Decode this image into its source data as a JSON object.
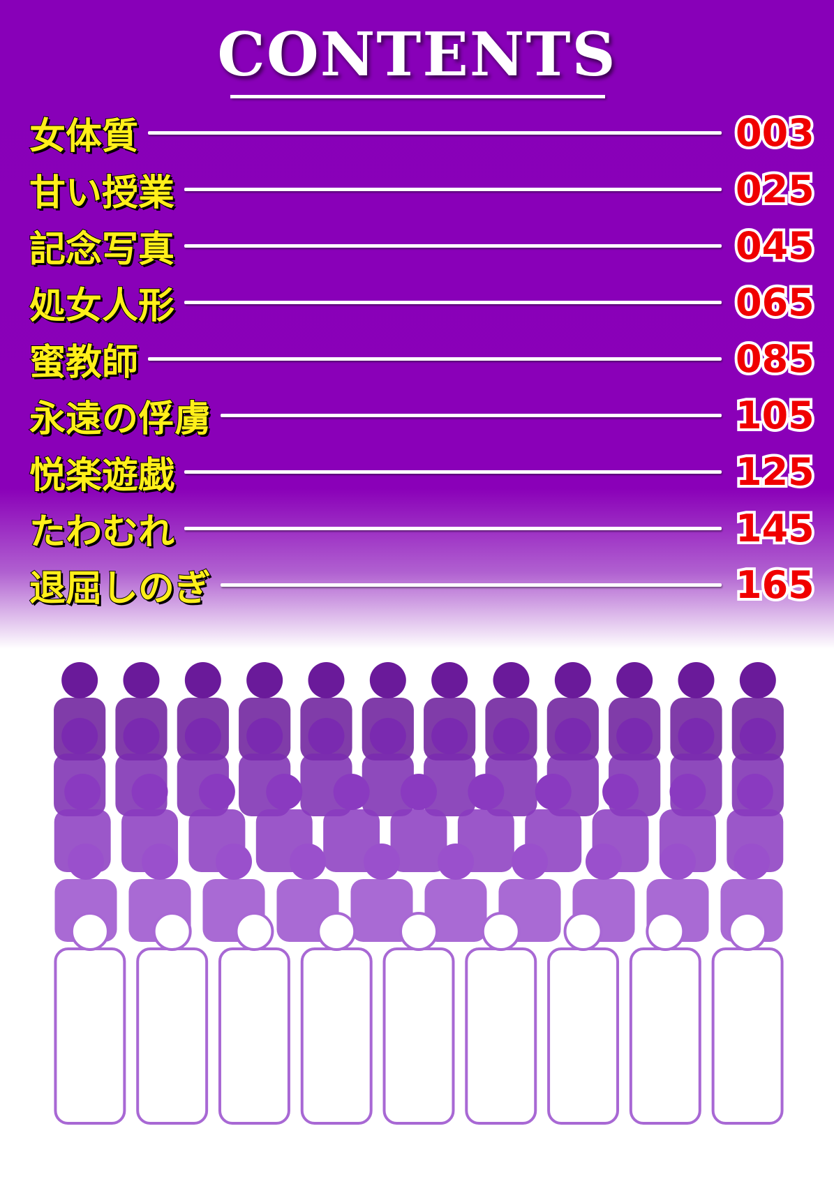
{
  "header": {
    "title": "CONTENTS"
  },
  "toc": [
    {
      "title": "女体質",
      "page": "003"
    },
    {
      "title": "甘い授業",
      "page": "025"
    },
    {
      "title": "記念写真",
      "page": "045"
    },
    {
      "title": "処女人形",
      "page": "065"
    },
    {
      "title": "蜜教師",
      "page": "085"
    },
    {
      "title": "永遠の俘虜",
      "page": "105"
    },
    {
      "title": "悦楽遊戯",
      "page": "125"
    },
    {
      "title": "たわむれ",
      "page": "145"
    },
    {
      "title": "退屈しのぎ",
      "page": "165"
    }
  ],
  "colors": {
    "background": "#8a00b8",
    "title_text": "#ffef1a",
    "page_number": "#f00000",
    "rule": "#ffffff"
  }
}
